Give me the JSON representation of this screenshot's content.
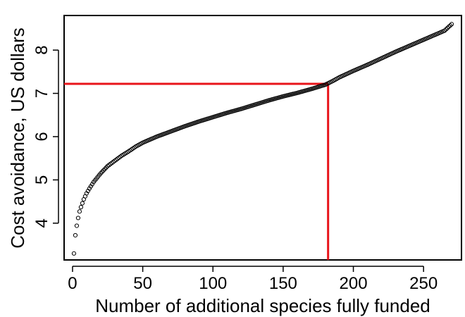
{
  "chart_data": {
    "type": "scatter",
    "title": "",
    "xlabel": "Number of additional species fully funded",
    "ylabel": "Cost avoidance, US dollars",
    "xlim": [
      -6,
      277
    ],
    "ylim": [
      3.15,
      8.8
    ],
    "xticks": [
      0,
      50,
      100,
      150,
      200,
      250
    ],
    "yticks": [
      4,
      5,
      6,
      7,
      8
    ],
    "grid": false,
    "legend": "none",
    "point_color": "#000000",
    "reference_line_color": "#e8141a",
    "reference": {
      "x": 182,
      "y": 7.22
    },
    "curve_anchors": [
      [
        1,
        3.3
      ],
      [
        2,
        3.72
      ],
      [
        3,
        3.94
      ],
      [
        4,
        4.12
      ],
      [
        5,
        4.27
      ],
      [
        6,
        4.37
      ],
      [
        7,
        4.46
      ],
      [
        8,
        4.55
      ],
      [
        9,
        4.62
      ],
      [
        10,
        4.69
      ],
      [
        12,
        4.8
      ],
      [
        15,
        4.95
      ],
      [
        20,
        5.15
      ],
      [
        25,
        5.32
      ],
      [
        30,
        5.44
      ],
      [
        35,
        5.56
      ],
      [
        40,
        5.66
      ],
      [
        45,
        5.77
      ],
      [
        50,
        5.86
      ],
      [
        55,
        5.93
      ],
      [
        60,
        6.0
      ],
      [
        70,
        6.12
      ],
      [
        80,
        6.24
      ],
      [
        90,
        6.35
      ],
      [
        100,
        6.45
      ],
      [
        110,
        6.55
      ],
      [
        120,
        6.64
      ],
      [
        130,
        6.74
      ],
      [
        140,
        6.84
      ],
      [
        150,
        6.93
      ],
      [
        160,
        7.01
      ],
      [
        170,
        7.1
      ],
      [
        180,
        7.2
      ],
      [
        185,
        7.28
      ],
      [
        190,
        7.37
      ],
      [
        200,
        7.52
      ],
      [
        210,
        7.66
      ],
      [
        220,
        7.81
      ],
      [
        230,
        7.96
      ],
      [
        240,
        8.1
      ],
      [
        250,
        8.24
      ],
      [
        260,
        8.38
      ],
      [
        265,
        8.45
      ],
      [
        270,
        8.6
      ]
    ],
    "n_points": 270
  }
}
